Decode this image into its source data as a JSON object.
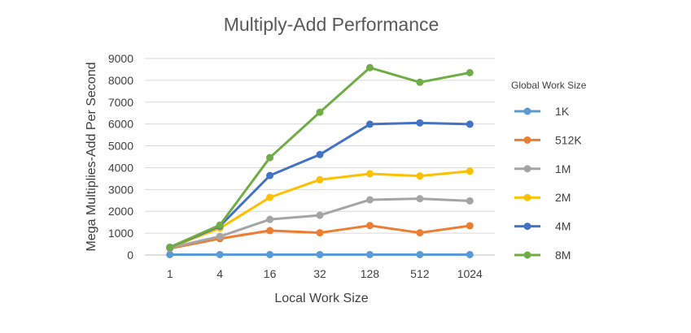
{
  "chart_data": {
    "type": "line",
    "title": "Multiply-Add Performance",
    "xlabel": "Local Work Size",
    "ylabel": "Mega Multiplies-Add Per Second",
    "categories": [
      "1",
      "4",
      "16",
      "32",
      "128",
      "512",
      "1024"
    ],
    "ylim": [
      0,
      9000
    ],
    "yticks": [
      "0",
      "1000",
      "2000",
      "3000",
      "4000",
      "5000",
      "6000",
      "7000",
      "8000",
      "9000"
    ],
    "grid": true,
    "legend_title": "Global Work Size",
    "legend_position": "right",
    "series": [
      {
        "name": "1K",
        "color": "#5B9BD5",
        "values": [
          20,
          20,
          20,
          20,
          20,
          20,
          20
        ]
      },
      {
        "name": "512K",
        "color": "#ED7D31",
        "values": [
          300,
          750,
          1120,
          1020,
          1350,
          1020,
          1340
        ]
      },
      {
        "name": "1M",
        "color": "#A5A5A5",
        "values": [
          330,
          850,
          1630,
          1820,
          2530,
          2580,
          2480
        ]
      },
      {
        "name": "2M",
        "color": "#FFC000",
        "values": [
          340,
          1230,
          2640,
          3450,
          3720,
          3620,
          3840
        ]
      },
      {
        "name": "4M",
        "color": "#4472C4",
        "values": [
          350,
          1320,
          3640,
          4600,
          5990,
          6050,
          5990
        ]
      },
      {
        "name": "8M",
        "color": "#70AD47",
        "values": [
          360,
          1370,
          4460,
          6540,
          8580,
          7910,
          8350
        ]
      }
    ]
  }
}
